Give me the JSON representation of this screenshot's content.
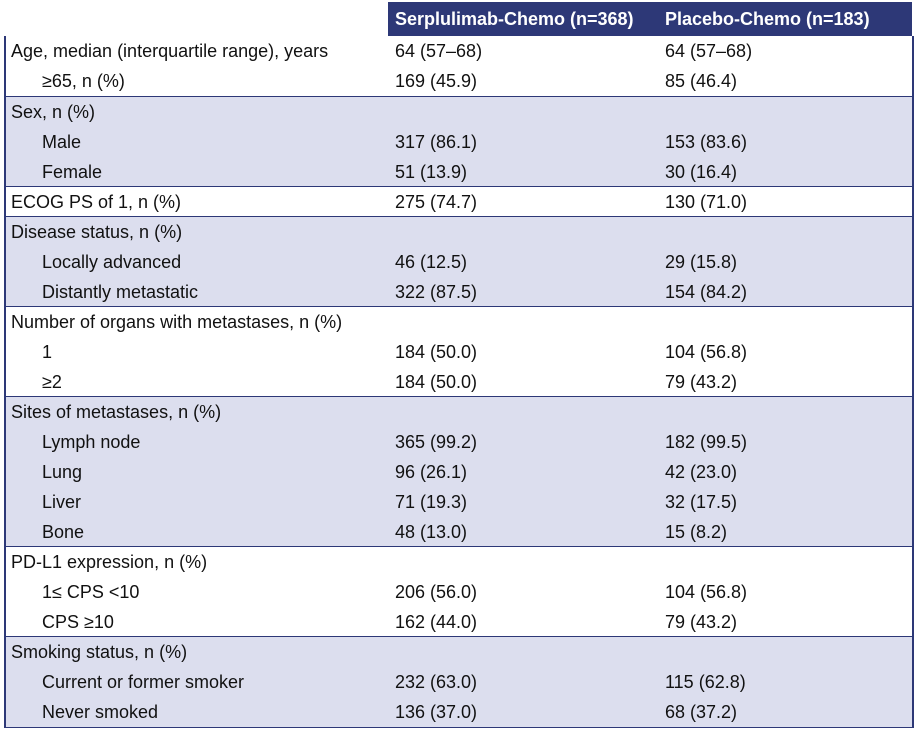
{
  "table": {
    "header": [
      "Serplulimab-Chemo (n=368)",
      "Placebo-Chemo (n=183)"
    ],
    "groups": [
      {
        "label": "Age, median (interquartile range), years",
        "values": [
          "64 (57–68)",
          "64 (57–68)"
        ],
        "items": [
          {
            "label": "≥65, n (%)",
            "values": [
              "169 (45.9)",
              "85 (46.4)"
            ]
          }
        ]
      },
      {
        "label": "Sex, n (%)",
        "items": [
          {
            "label": "Male",
            "values": [
              "317 (86.1)",
              "153 (83.6)"
            ]
          },
          {
            "label": "Female",
            "values": [
              "51 (13.9)",
              "30 (16.4)"
            ]
          }
        ]
      },
      {
        "label": "ECOG PS of 1, n (%)",
        "values": [
          "275 (74.7)",
          "130 (71.0)"
        ],
        "items": []
      },
      {
        "label": "Disease status, n (%)",
        "items": [
          {
            "label": "Locally advanced",
            "values": [
              "46 (12.5)",
              "29 (15.8)"
            ]
          },
          {
            "label": "Distantly metastatic",
            "values": [
              "322 (87.5)",
              "154 (84.2)"
            ]
          }
        ]
      },
      {
        "label": "Number of organs with metastases, n (%)",
        "items": [
          {
            "label": "1",
            "values": [
              "184 (50.0)",
              "104 (56.8)"
            ]
          },
          {
            "label": "≥2",
            "values": [
              "184 (50.0)",
              "79 (43.2)"
            ]
          }
        ]
      },
      {
        "label": "Sites of metastases, n (%)",
        "items": [
          {
            "label": "Lymph node",
            "values": [
              "365 (99.2)",
              "182 (99.5)"
            ]
          },
          {
            "label": "Lung",
            "values": [
              "96 (26.1)",
              "42 (23.0)"
            ]
          },
          {
            "label": "Liver",
            "values": [
              "71 (19.3)",
              "32 (17.5)"
            ]
          },
          {
            "label": "Bone",
            "values": [
              "48 (13.0)",
              "15 (8.2)"
            ]
          }
        ]
      },
      {
        "label": "PD-L1 expression, n (%)",
        "items": [
          {
            "label": "1≤ CPS <10",
            "values": [
              "206 (56.0)",
              "104 (56.8)"
            ]
          },
          {
            "label": "CPS ≥10",
            "values": [
              "162 (44.0)",
              "79 (43.2)"
            ]
          }
        ]
      },
      {
        "label": "Smoking status, n (%)",
        "items": [
          {
            "label": "Current or former smoker",
            "values": [
              "232 (63.0)",
              "115 (62.8)"
            ]
          },
          {
            "label": "Never smoked",
            "values": [
              "136 (37.0)",
              "68 (37.2)"
            ]
          }
        ]
      }
    ]
  }
}
